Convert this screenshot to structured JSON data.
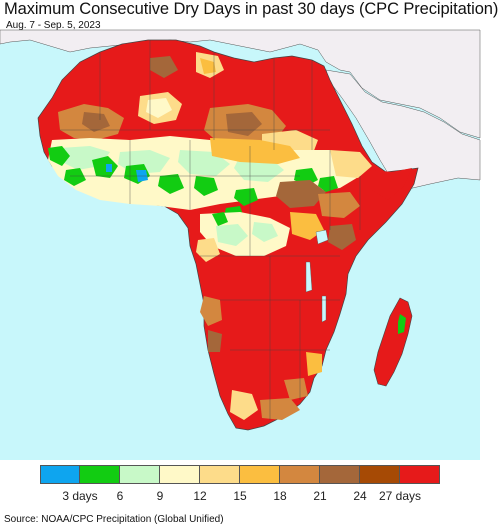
{
  "header": {
    "title": "Maximum Consecutive Dry Days in past 30 days (CPC Precipitation)",
    "subtitle": "Aug. 7 - Sep. 5, 2023"
  },
  "map": {
    "region": "Africa",
    "ocean_color": "#c8f7fb",
    "outside_land_color": "#f2eef2"
  },
  "legend": {
    "colors": [
      "#0ea5ef",
      "#12cc12",
      "#c8f9c8",
      "#fff9c8",
      "#fddc8a",
      "#fbbe40",
      "#d3873f",
      "#a4673a",
      "#a64a05",
      "#e61a1a"
    ],
    "ticks": [
      {
        "label": "3 days",
        "pos": 1
      },
      {
        "label": "6",
        "pos": 2
      },
      {
        "label": "9",
        "pos": 3
      },
      {
        "label": "12",
        "pos": 4
      },
      {
        "label": "15",
        "pos": 5
      },
      {
        "label": "18",
        "pos": 6
      },
      {
        "label": "21",
        "pos": 7
      },
      {
        "label": "24",
        "pos": 8
      },
      {
        "label": "27 days",
        "pos": 9
      }
    ]
  },
  "footer": {
    "source": "Source: NOAA/CPC Precipitation (Global Unified)"
  }
}
